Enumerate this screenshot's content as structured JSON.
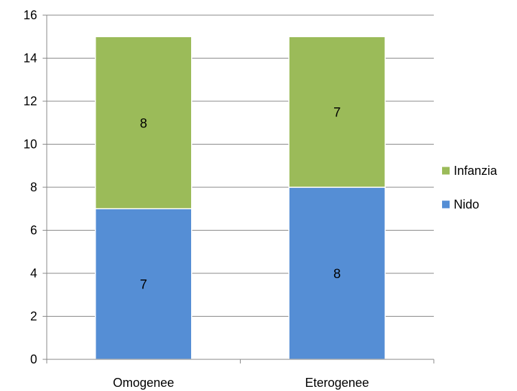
{
  "chart_data": {
    "type": "bar",
    "stacked": true,
    "categories": [
      "Omogenee",
      "Eterogenee"
    ],
    "series": [
      {
        "name": "Nido",
        "values": [
          7,
          8
        ],
        "color": "#558ED5"
      },
      {
        "name": "Infanzia",
        "values": [
          8,
          7
        ],
        "color": "#9BBB59"
      }
    ],
    "title": "",
    "xlabel": "",
    "ylabel": "",
    "ylim": [
      0,
      16
    ],
    "yticks": [
      0,
      2,
      4,
      6,
      8,
      10,
      12,
      14,
      16
    ],
    "grid": true,
    "legend_position": "right",
    "legend_order": [
      "Infanzia",
      "Nido"
    ]
  }
}
